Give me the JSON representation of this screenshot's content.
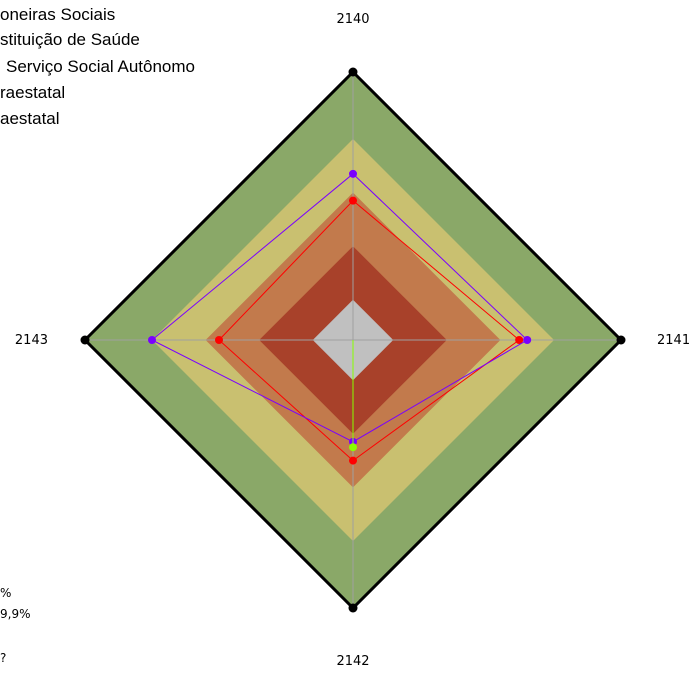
{
  "chart_data": {
    "type": "radar",
    "title": "",
    "axes": [
      "2140",
      "2141",
      "2142",
      "2143"
    ],
    "range": [
      0,
      100
    ],
    "bands": [
      {
        "from": 0,
        "to": 15,
        "color": "#c0c0c0"
      },
      {
        "from": 15,
        "to": 35,
        "color": "#a8412a"
      },
      {
        "from": 35,
        "to": 55,
        "color": "#c27a4c"
      },
      {
        "from": 55,
        "to": 75,
        "color": "#c9c070"
      },
      {
        "from": 75,
        "to": 100,
        "color": "#8aa868"
      }
    ],
    "legend": {
      "placement": "top-left",
      "entries": [
        "oneiras Sociais",
        "stituição de Saúde",
        "Serviço Social Autônomo",
        "raestatal",
        "aestatal"
      ]
    },
    "notes": [
      "%",
      "9,9%",
      "?"
    ],
    "series": [
      {
        "values": [
          52,
          62,
          45,
          50
        ],
        "color": "#ff0000"
      },
      {
        "values": [
          62,
          65,
          38,
          75
        ],
        "color": "#7a00ff"
      },
      {
        "values": [
          0,
          0,
          40,
          0
        ],
        "color": "#88ff00"
      }
    ]
  }
}
